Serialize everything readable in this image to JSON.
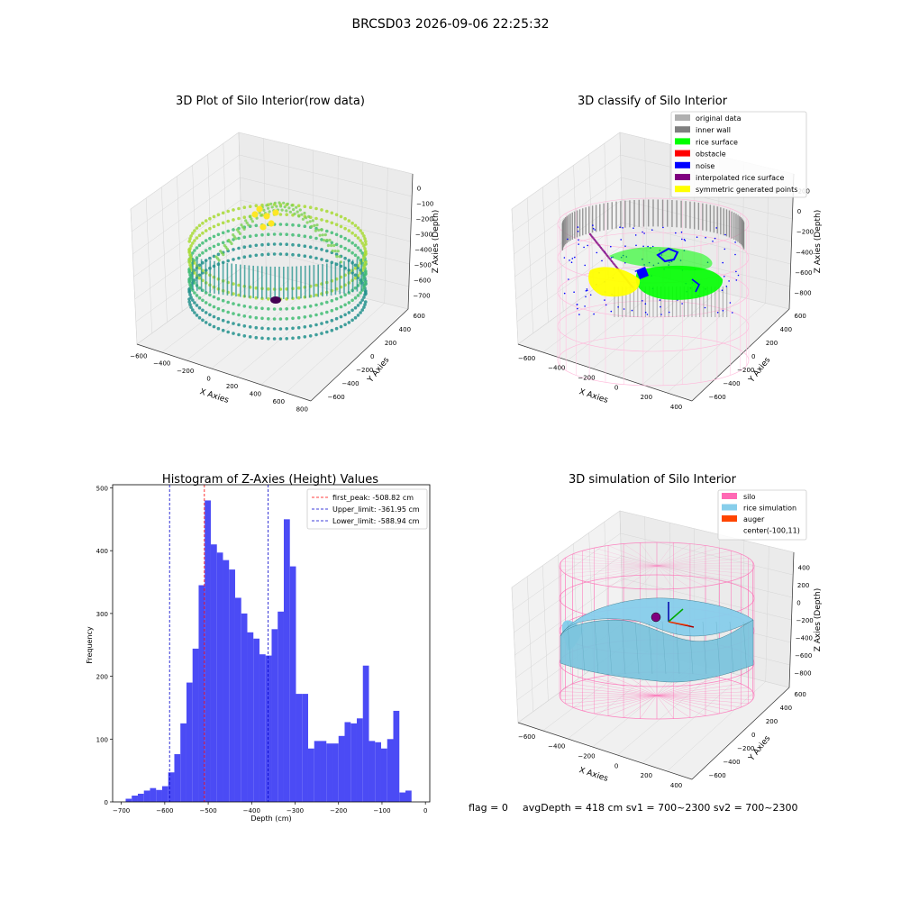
{
  "suptitle": "BRCSD03 2026-09-06 22:25:32",
  "footer": {
    "flag": "flag = 0",
    "stats": "avgDepth = 418 cm  sv1 = 700~2300  sv2 = 700~2300"
  },
  "colors": {
    "hist_bar": "#4b4bf5",
    "first_peak_line": "#ff0000",
    "limit_line": "#0000cc",
    "viridis_low": "#440154",
    "viridis_mid": "#21918c",
    "viridis_high": "#fde725",
    "inner_wall": "#808080",
    "rice_surface": "#00ff00",
    "obstacle": "#ff0000",
    "noise": "#0000ff",
    "interpolated": "#800080",
    "symmetric": "#ffff00",
    "silo": "#ff69b4",
    "rice_sim": "#87ceeb",
    "auger": "#ff4500"
  },
  "chart_data": [
    {
      "type": "scatter",
      "projection": "3d",
      "title": "3D Plot of Silo Interior(row data)",
      "xlabel": "X Axies",
      "ylabel": "Y Axies",
      "zlabel": "Z Axies (Depth)",
      "xticks": [
        "−600",
        "−400",
        "−200",
        "0",
        "200",
        "400",
        "600",
        "800"
      ],
      "yticks": [
        "−600",
        "−400",
        "−200",
        "0",
        "200",
        "400",
        "600"
      ],
      "zticks": [
        "0",
        "−100",
        "−200",
        "−300",
        "−400",
        "−500",
        "−600",
        "−700"
      ],
      "colormap": "viridis"
    },
    {
      "type": "scatter",
      "projection": "3d",
      "title": "3D classify of Silo Interior",
      "xlabel": "X Axies",
      "ylabel": "Y Axies",
      "zlabel": "Z Axies (Depth)",
      "xticks": [
        "−600",
        "−400",
        "−200",
        "0",
        "200",
        "400"
      ],
      "yticks": [
        "−600",
        "−400",
        "−200",
        "0",
        "200",
        "400",
        "600"
      ],
      "zticks": [
        "200",
        "0",
        "−200",
        "−400",
        "−600",
        "−800"
      ],
      "legend": [
        "original data",
        "inner wall",
        "rice surface",
        "obstacle",
        "noise",
        "interpolated rice surface",
        "symmetric generated points"
      ],
      "legend_loc": "top-right"
    },
    {
      "type": "bar",
      "title": "Histogram of Z-Axies (Height) Values",
      "xlabel": "Depth (cm)",
      "ylabel": "Frequency",
      "xlim": [
        -720,
        10
      ],
      "ylim": [
        0,
        505
      ],
      "bin_start": -690,
      "bin_width": 14,
      "values": [
        5,
        10,
        13,
        18,
        22,
        19,
        25,
        47,
        76,
        125,
        190,
        244,
        345,
        480,
        410,
        397,
        385,
        370,
        325,
        300,
        270,
        260,
        235,
        233,
        275,
        303,
        450,
        375,
        172,
        172,
        85,
        97,
        97,
        93,
        93,
        105,
        127,
        125,
        133,
        217,
        97,
        95,
        85,
        100,
        145,
        15,
        18
      ],
      "xticks": [
        -700,
        -600,
        -500,
        -400,
        -300,
        -200,
        -100,
        0
      ],
      "xtick_labels": [
        "−700",
        "−600",
        "−500",
        "−400",
        "−300",
        "−200",
        "−100",
        "0"
      ],
      "yticks": [
        0,
        100,
        200,
        300,
        400,
        500
      ],
      "ytick_labels": [
        "0",
        "100",
        "200",
        "300",
        "400",
        "500"
      ],
      "vlines": [
        {
          "name": "first_peak: -508.82 cm",
          "x": -508.82,
          "color": "#ff0000"
        },
        {
          "name": "Upper_limit: -361.95 cm",
          "x": -361.95,
          "color": "#0000cc"
        },
        {
          "name": "Lower_limit: -588.94 cm",
          "x": -588.94,
          "color": "#0000cc"
        }
      ],
      "legend_loc": "top-right"
    },
    {
      "type": "surface",
      "projection": "3d",
      "title": "3D simulation of Silo Interior",
      "xlabel": "X Axies",
      "ylabel": "Y Axies",
      "zlabel": "Z Axies (Depth)",
      "xticks": [
        "−600",
        "−400",
        "−200",
        "0",
        "200",
        "400"
      ],
      "yticks": [
        "−600",
        "−400",
        "−200",
        "0",
        "200",
        "400",
        "600"
      ],
      "zticks": [
        "400",
        "200",
        "0",
        "−200",
        "−400",
        "−600",
        "−800"
      ],
      "legend": [
        "silo",
        "rice simulation",
        "auger",
        "center(-100,11)"
      ],
      "legend_loc": "top-right"
    }
  ]
}
